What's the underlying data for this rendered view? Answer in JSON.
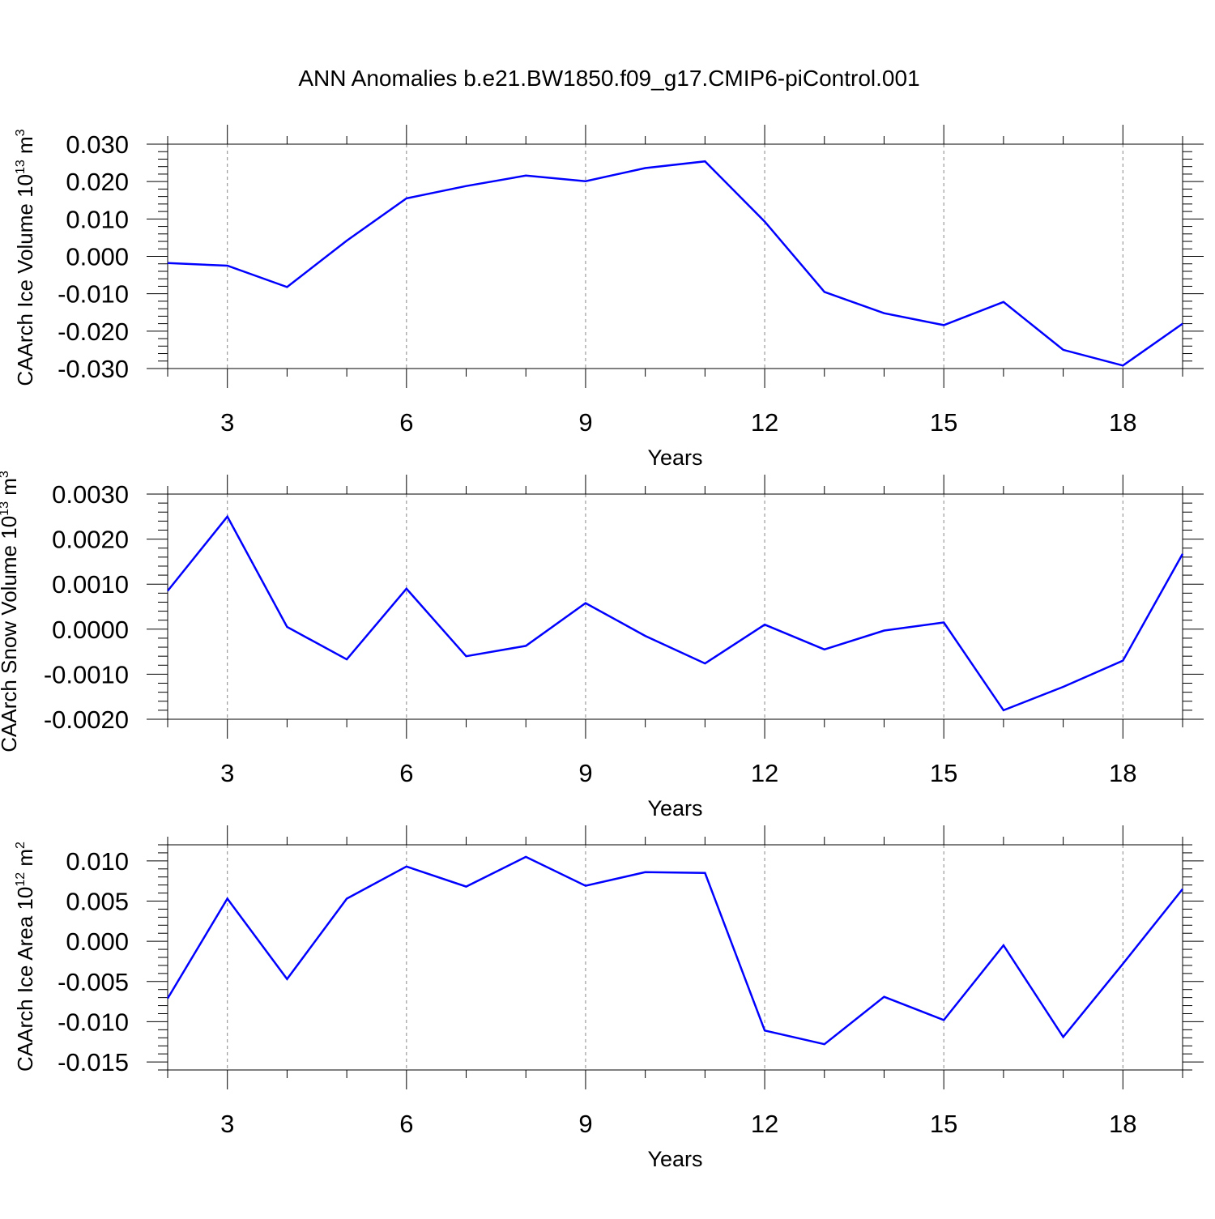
{
  "figure_title": "ANN Anomalies b.e21.BW1850.f09_g17.CMIP6-piControl.001",
  "chart_data": [
    {
      "type": "line",
      "title": "",
      "xlabel": "Years",
      "ylabel": {
        "text": "CAArch Ice Volume 10",
        "exp": "13",
        "unit": " m",
        "unit_exp": "3"
      },
      "xlim": [
        2,
        19
      ],
      "ylim": [
        -0.03,
        0.03
      ],
      "x_ticks": [
        3,
        6,
        9,
        12,
        15,
        18
      ],
      "x_tick_labels": [
        "3",
        "6",
        "9",
        "12",
        "15",
        "18"
      ],
      "y_ticks": [
        0.03,
        0.02,
        0.01,
        0.0,
        -0.01,
        -0.02,
        -0.03
      ],
      "y_tick_labels": [
        "0.030",
        "0.020",
        "0.010",
        "0.000",
        "-0.010",
        "-0.020",
        "-0.030"
      ],
      "grid": "vertical dashed at major x ticks",
      "color": "#0000ff",
      "x": [
        2,
        3,
        4,
        5,
        6,
        7,
        8,
        9,
        10,
        11,
        12,
        13,
        14,
        15,
        16,
        17,
        18,
        19
      ],
      "values": [
        -0.0018,
        -0.0025,
        -0.0082,
        0.0042,
        0.0155,
        0.0188,
        0.0216,
        0.0201,
        0.0236,
        0.0254,
        0.0093,
        -0.0095,
        -0.0152,
        -0.0184,
        -0.0122,
        -0.025,
        -0.0292,
        -0.018
      ]
    },
    {
      "type": "line",
      "title": "",
      "xlabel": "Years",
      "ylabel": {
        "text": "CAArch Snow Volume 10",
        "exp": "13",
        "unit": " m",
        "unit_exp": "3"
      },
      "xlim": [
        2,
        19
      ],
      "ylim": [
        -0.002,
        0.003
      ],
      "x_ticks": [
        3,
        6,
        9,
        12,
        15,
        18
      ],
      "x_tick_labels": [
        "3",
        "6",
        "9",
        "12",
        "15",
        "18"
      ],
      "y_ticks": [
        0.003,
        0.002,
        0.001,
        0.0,
        -0.001,
        -0.002
      ],
      "y_tick_labels": [
        "0.0030",
        "0.0020",
        "0.0010",
        "0.0000",
        "-0.0010",
        "-0.0020"
      ],
      "grid": "vertical dashed at major x ticks",
      "color": "#0000ff",
      "x": [
        2,
        3,
        4,
        5,
        6,
        7,
        8,
        9,
        10,
        11,
        12,
        13,
        14,
        15,
        16,
        17,
        18,
        19
      ],
      "values": [
        0.00085,
        0.0025,
        5e-05,
        -0.00067,
        0.0009,
        -0.0006,
        -0.00037,
        0.00058,
        -0.00015,
        -0.00076,
        0.0001,
        -0.00045,
        -3e-05,
        0.00015,
        -0.0018,
        -0.00128,
        -0.0007,
        0.00167
      ]
    },
    {
      "type": "line",
      "title": "",
      "xlabel": "Years",
      "ylabel": {
        "text": "CAArch Ice Area 10",
        "exp": "12",
        "unit": " m",
        "unit_exp": "2"
      },
      "xlim": [
        2,
        19
      ],
      "ylim": [
        -0.016,
        0.012
      ],
      "x_ticks": [
        3,
        6,
        9,
        12,
        15,
        18
      ],
      "x_tick_labels": [
        "3",
        "6",
        "9",
        "12",
        "15",
        "18"
      ],
      "y_ticks": [
        0.01,
        0.005,
        0.0,
        -0.005,
        -0.01,
        -0.015
      ],
      "y_tick_labels": [
        "0.010",
        "0.005",
        "0.000",
        "-0.005",
        "-0.010",
        "-0.015"
      ],
      "grid": "vertical dashed at major x ticks",
      "color": "#0000ff",
      "x": [
        2,
        3,
        4,
        5,
        6,
        7,
        8,
        9,
        10,
        11,
        12,
        13,
        14,
        15,
        16,
        17,
        18,
        19
      ],
      "values": [
        -0.0071,
        0.0053,
        -0.0047,
        0.0053,
        0.0093,
        0.0068,
        0.0105,
        0.0069,
        0.0086,
        0.0085,
        -0.0111,
        -0.0128,
        -0.0069,
        -0.0098,
        -0.0005,
        -0.0119,
        -0.0028,
        0.0065
      ]
    }
  ]
}
